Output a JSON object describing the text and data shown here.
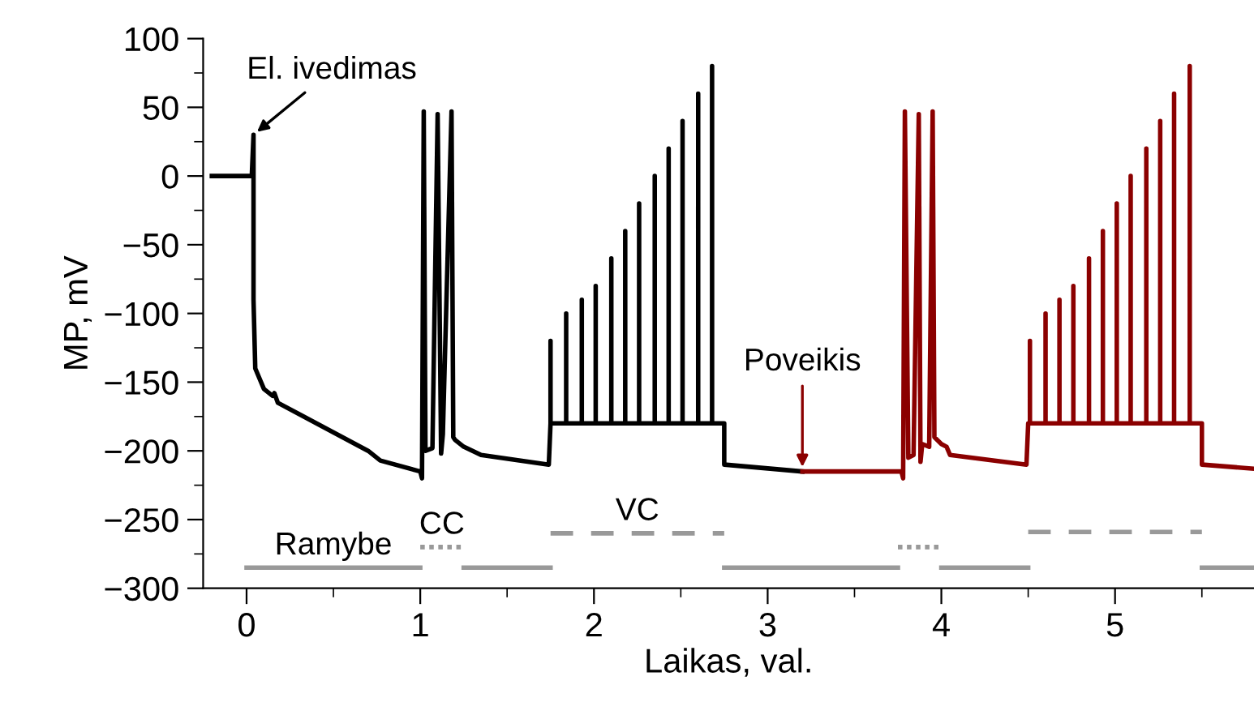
{
  "chart_data": {
    "type": "line",
    "xlabel": "Laikas, val.",
    "ylabel": "MP, mV",
    "xlim": [
      -0.25,
      5.8
    ],
    "ylim": [
      -300,
      100
    ],
    "xticks": [
      0,
      1,
      2,
      3,
      4,
      5
    ],
    "yticks": [
      -300,
      -250,
      -200,
      -150,
      -100,
      -50,
      0,
      50,
      100
    ],
    "grid": false,
    "legend": false,
    "series": [
      {
        "color": "#000000",
        "line_style": "solid",
        "x": [
          -0.2,
          0.03,
          0.04,
          0.04,
          0.05,
          0.1,
          0.15,
          0.16,
          0.18,
          0.7,
          0.77,
          1.0,
          1.01,
          1.02,
          1.03,
          1.07,
          1.1,
          1.12,
          1.13,
          1.18,
          1.19,
          1.2,
          1.25,
          1.35,
          1.74,
          1.75,
          1.75,
          1.75,
          1.84,
          1.84,
          1.84,
          1.93,
          1.93,
          1.93,
          2.01,
          2.01,
          2.01,
          2.1,
          2.1,
          2.1,
          2.18,
          2.18,
          2.18,
          2.26,
          2.26,
          2.26,
          2.35,
          2.35,
          2.35,
          2.43,
          2.43,
          2.43,
          2.51,
          2.51,
          2.51,
          2.6,
          2.6,
          2.6,
          2.68,
          2.68,
          2.68,
          2.75,
          2.75,
          3.2
        ],
        "values": [
          0,
          0,
          30,
          -90,
          -140,
          -155,
          -160,
          -158,
          -165,
          -200,
          -207,
          -215,
          -220,
          47,
          -200,
          -198,
          45,
          -202,
          -188,
          47,
          -190,
          -192,
          -197,
          -203,
          -210,
          -180,
          -120,
          -180,
          -180,
          -100,
          -180,
          -180,
          -90,
          -180,
          -180,
          -80,
          -180,
          -180,
          -60,
          -180,
          -180,
          -40,
          -180,
          -180,
          -20,
          -180,
          -180,
          0,
          -180,
          -180,
          20,
          -180,
          -180,
          40,
          -180,
          -180,
          60,
          -180,
          -180,
          80,
          -180,
          -180,
          -210,
          -215
        ]
      },
      {
        "color": "#8b0000",
        "line_style": "solid",
        "x": [
          3.2,
          3.77,
          3.78,
          3.79,
          3.81,
          3.84,
          3.87,
          3.88,
          3.89,
          3.93,
          3.95,
          3.96,
          4.0,
          4.03,
          4.05,
          4.49,
          4.5,
          4.51,
          4.51,
          4.51,
          4.6,
          4.6,
          4.6,
          4.68,
          4.68,
          4.68,
          4.76,
          4.76,
          4.76,
          4.85,
          4.85,
          4.85,
          4.93,
          4.93,
          4.93,
          5.01,
          5.01,
          5.01,
          5.09,
          5.09,
          5.09,
          5.18,
          5.18,
          5.18,
          5.26,
          5.26,
          5.26,
          5.34,
          5.34,
          5.34,
          5.43,
          5.43,
          5.43,
          5.5,
          5.5,
          5.8
        ],
        "values": [
          -215,
          -215,
          -220,
          47,
          -205,
          -203,
          45,
          -208,
          -195,
          -197,
          47,
          -190,
          -195,
          -197,
          -203,
          -210,
          -180,
          -180,
          -120,
          -180,
          -180,
          -100,
          -180,
          -180,
          -90,
          -180,
          -180,
          -80,
          -180,
          -180,
          -60,
          -180,
          -180,
          -40,
          -180,
          -180,
          -20,
          -180,
          -180,
          0,
          -180,
          -180,
          20,
          -180,
          -180,
          40,
          -180,
          -180,
          60,
          -180,
          -180,
          80,
          -180,
          -180,
          -210,
          -213
        ]
      },
      {
        "name": "Ramybe",
        "color": "#999999",
        "line_style": "solid",
        "x": [
          0,
          1.0
        ],
        "values": [
          -285,
          -285
        ]
      },
      {
        "color": "#999999",
        "line_style": "solid",
        "x": [
          1.25,
          1.75
        ],
        "values": [
          -285,
          -285
        ]
      },
      {
        "color": "#999999",
        "line_style": "solid",
        "x": [
          2.75,
          3.75
        ],
        "values": [
          -285,
          -285
        ]
      },
      {
        "color": "#999999",
        "line_style": "solid",
        "x": [
          4.0,
          4.5
        ],
        "values": [
          -285,
          -285
        ]
      },
      {
        "color": "#999999",
        "line_style": "solid",
        "x": [
          5.5,
          5.8
        ],
        "values": [
          -285,
          -285
        ]
      },
      {
        "name": "CC",
        "color": "#999999",
        "line_style": "dotted",
        "x": [
          1.0,
          1.25
        ],
        "values": [
          -270,
          -270
        ]
      },
      {
        "color": "#999999",
        "line_style": "dotted",
        "x": [
          3.75,
          4.0
        ],
        "values": [
          -270,
          -270
        ]
      },
      {
        "name": "VC",
        "color": "#999999",
        "line_style": "dashed",
        "x": [
          1.75,
          2.75
        ],
        "values": [
          -260,
          -260
        ]
      },
      {
        "color": "#999999",
        "line_style": "dashed",
        "x": [
          4.5,
          5.5
        ],
        "values": [
          -259,
          -259
        ]
      }
    ],
    "annotations": [
      {
        "text": "El. ivedimas",
        "x": 0.04,
        "y": 30
      },
      {
        "text": "Poveikis",
        "x": 3.2,
        "y": -215
      }
    ]
  }
}
